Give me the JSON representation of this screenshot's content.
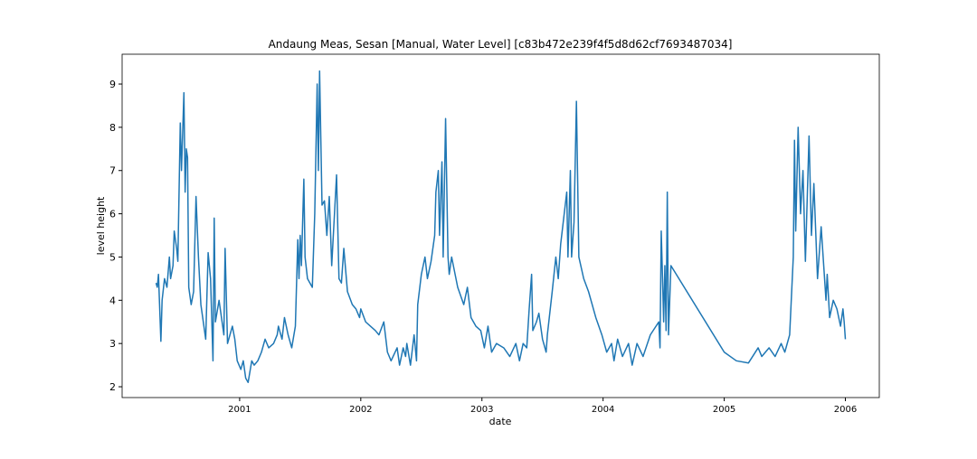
{
  "chart_data": {
    "type": "line",
    "title": "Andaung Meas, Sesan [Manual, Water Level] [c83b472e239f4f5d8d62cf7693487034]",
    "x_label": "date",
    "y_label": "level height",
    "color": "#1f77b4",
    "xlim": [
      2000.03,
      2006.28
    ],
    "ylim": [
      1.75,
      9.69
    ],
    "xticks": [
      2001,
      2002,
      2003,
      2004,
      2005,
      2006
    ],
    "yticks": [
      2,
      3,
      4,
      5,
      6,
      7,
      8,
      9
    ],
    "x": [
      2000.31,
      2000.32,
      2000.33,
      2000.35,
      2000.36,
      2000.38,
      2000.4,
      2000.42,
      2000.43,
      2000.45,
      2000.46,
      2000.48,
      2000.49,
      2000.51,
      2000.52,
      2000.54,
      2000.55,
      2000.56,
      2000.57,
      2000.58,
      2000.6,
      2000.62,
      2000.64,
      2000.66,
      2000.68,
      2000.72,
      2000.74,
      2000.76,
      2000.78,
      2000.79,
      2000.8,
      2000.83,
      2000.87,
      2000.88,
      2000.9,
      2000.94,
      2000.96,
      2000.98,
      2001.01,
      2001.03,
      2001.05,
      2001.07,
      2001.1,
      2001.12,
      2001.15,
      2001.18,
      2001.21,
      2001.24,
      2001.28,
      2001.31,
      2001.32,
      2001.35,
      2001.37,
      2001.4,
      2001.43,
      2001.46,
      2001.48,
      2001.49,
      2001.5,
      2001.51,
      2001.53,
      2001.54,
      2001.56,
      2001.6,
      2001.62,
      2001.64,
      2001.65,
      2001.66,
      2001.68,
      2001.7,
      2001.72,
      2001.74,
      2001.76,
      2001.8,
      2001.82,
      2001.84,
      2001.86,
      2001.89,
      2001.93,
      2001.96,
      2001.99,
      2002.0,
      2002.04,
      2002.08,
      2002.12,
      2002.15,
      2002.19,
      2002.22,
      2002.25,
      2002.3,
      2002.32,
      2002.35,
      2002.37,
      2002.38,
      2002.41,
      2002.44,
      2002.46,
      2002.47,
      2002.5,
      2002.53,
      2002.55,
      2002.58,
      2002.61,
      2002.62,
      2002.64,
      2002.65,
      2002.67,
      2002.68,
      2002.7,
      2002.72,
      2002.73,
      2002.75,
      2002.8,
      2002.85,
      2002.88,
      2002.91,
      2002.95,
      2002.99,
      2003.02,
      2003.05,
      2003.08,
      2003.12,
      2003.18,
      2003.23,
      2003.28,
      2003.31,
      2003.34,
      2003.37,
      2003.39,
      2003.41,
      2003.42,
      2003.45,
      2003.47,
      2003.5,
      2003.53,
      2003.54,
      2003.58,
      2003.61,
      2003.63,
      2003.65,
      2003.7,
      2003.71,
      2003.73,
      2003.74,
      2003.76,
      2003.78,
      2003.8,
      2003.84,
      2003.88,
      2003.94,
      2003.99,
      2004.03,
      2004.07,
      2004.09,
      2004.12,
      2004.16,
      2004.21,
      2004.24,
      2004.28,
      2004.33,
      2004.39,
      2004.46,
      2004.47,
      2004.48,
      2004.49,
      2004.5,
      2004.51,
      2004.52,
      2004.53,
      2004.54,
      2004.56,
      2005.0,
      2005.1,
      2005.2,
      2005.28,
      2005.31,
      2005.37,
      2005.42,
      2005.47,
      2005.5,
      2005.54,
      2005.57,
      2005.58,
      2005.59,
      2005.61,
      2005.63,
      2005.65,
      2005.67,
      2005.7,
      2005.72,
      2005.74,
      2005.77,
      2005.8,
      2005.84,
      2005.85,
      2005.87,
      2005.9,
      2005.93,
      2005.96,
      2005.98,
      2005.99,
      2006.0
    ],
    "values": [
      4.4,
      4.3,
      4.6,
      3.05,
      4.0,
      4.5,
      4.3,
      5.0,
      4.5,
      4.8,
      5.6,
      5.2,
      4.9,
      8.1,
      7.0,
      8.8,
      6.5,
      7.5,
      7.3,
      4.3,
      3.9,
      4.2,
      6.4,
      5.0,
      3.9,
      3.1,
      5.1,
      4.5,
      2.6,
      5.9,
      3.5,
      4.0,
      3.2,
      5.2,
      3.0,
      3.4,
      3.1,
      2.6,
      2.4,
      2.6,
      2.2,
      2.1,
      2.6,
      2.5,
      2.6,
      2.8,
      3.1,
      2.9,
      3.0,
      3.2,
      3.4,
      3.1,
      3.6,
      3.2,
      2.9,
      3.4,
      5.4,
      4.5,
      5.5,
      4.8,
      6.8,
      5.0,
      4.5,
      4.3,
      6.0,
      9.0,
      7.0,
      9.3,
      6.2,
      6.3,
      5.5,
      6.4,
      4.8,
      6.9,
      4.5,
      4.4,
      5.2,
      4.2,
      3.9,
      3.8,
      3.6,
      3.8,
      3.5,
      3.4,
      3.3,
      3.2,
      3.5,
      2.8,
      2.6,
      2.9,
      2.5,
      2.9,
      2.7,
      3.0,
      2.5,
      3.2,
      2.6,
      3.9,
      4.6,
      5.0,
      4.5,
      4.9,
      5.5,
      6.5,
      7.0,
      5.5,
      7.2,
      5.0,
      8.2,
      5.0,
      4.6,
      5.0,
      4.3,
      3.9,
      4.3,
      3.6,
      3.4,
      3.3,
      2.9,
      3.4,
      2.8,
      3.0,
      2.9,
      2.7,
      3.0,
      2.6,
      3.0,
      2.9,
      3.8,
      4.6,
      3.3,
      3.5,
      3.7,
      3.1,
      2.8,
      3.2,
      4.2,
      5.0,
      4.5,
      5.3,
      6.5,
      5.0,
      7.0,
      5.0,
      5.8,
      8.6,
      5.0,
      4.5,
      4.2,
      3.6,
      3.2,
      2.8,
      3.0,
      2.6,
      3.1,
      2.7,
      3.0,
      2.5,
      3.0,
      2.7,
      3.2,
      3.5,
      2.9,
      5.6,
      4.6,
      3.5,
      4.8,
      3.3,
      6.5,
      3.2,
      4.8,
      2.8,
      2.6,
      2.55,
      2.9,
      2.7,
      2.9,
      2.7,
      3.0,
      2.8,
      3.2,
      5.0,
      7.7,
      5.6,
      8.0,
      6.0,
      7.0,
      4.9,
      7.8,
      5.5,
      6.7,
      4.5,
      5.7,
      4.0,
      4.6,
      3.6,
      4.0,
      3.8,
      3.4,
      3.8,
      3.5,
      3.1
    ]
  }
}
